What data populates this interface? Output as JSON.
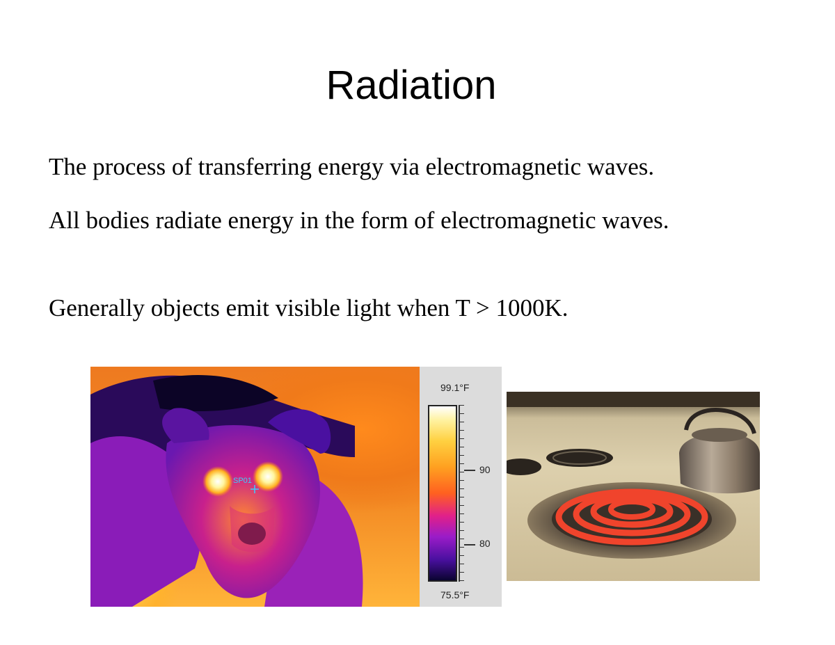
{
  "slide": {
    "title": "Radiation",
    "paragraphs": [
      "The process of transferring energy via electromagnetic waves.",
      "All bodies radiate energy in the form of electromagnetic waves.",
      "Generally objects emit visible light when T > 1000K."
    ]
  },
  "thermal_image": {
    "spot_label": "SP01",
    "scale_max": "99.1°F",
    "scale_min": "75.5°F",
    "tick_90": "90",
    "tick_80": "80"
  },
  "colors": {
    "coil_hot": "#f0442c",
    "thermal_hot": "#ffd040",
    "thermal_cold": "#0a0430"
  }
}
